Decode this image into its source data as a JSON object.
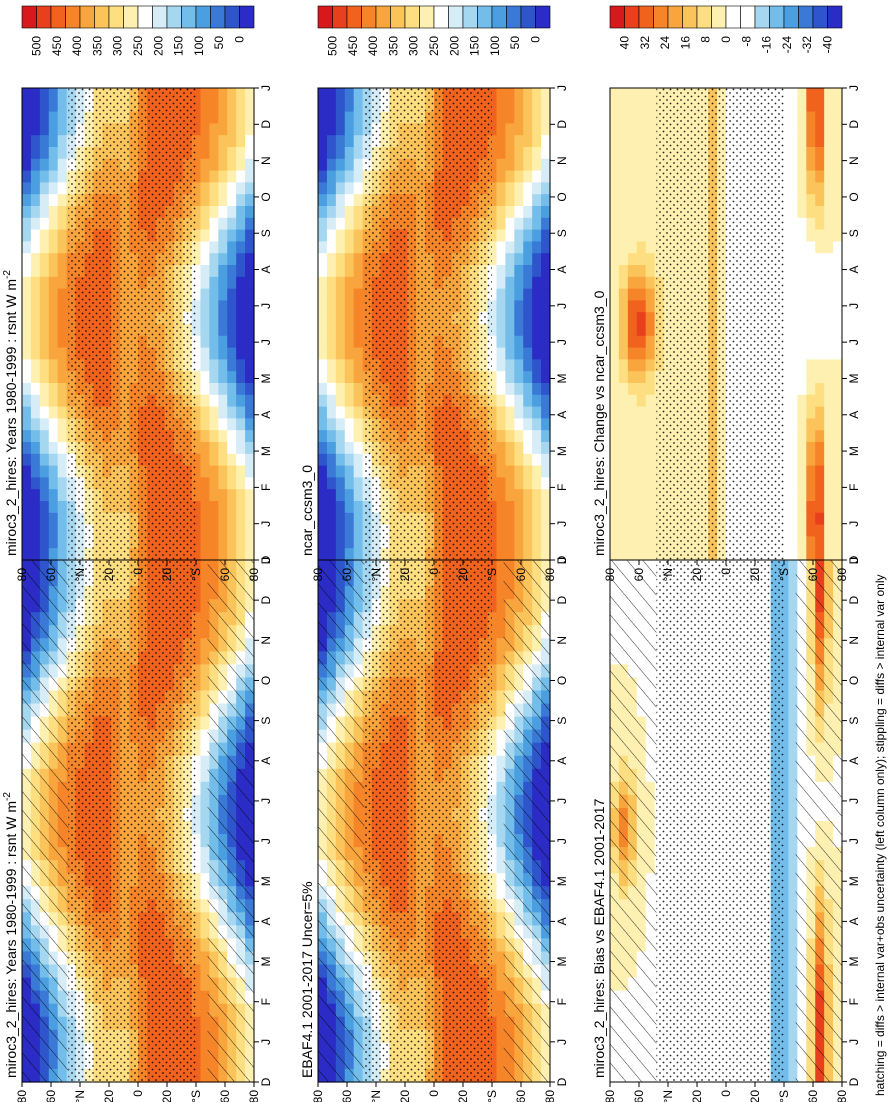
{
  "footer": "hatching = diffs > internal var+obs uncertainty (left column only); stippling = diffs > internal var only",
  "axis_labels": {
    "months": [
      "D",
      "J",
      "F",
      "M",
      "A",
      "M",
      "J",
      "J",
      "A",
      "S",
      "O",
      "N",
      "D",
      "J"
    ],
    "lat": [
      "80",
      "60",
      "°N",
      "20",
      "0",
      "20",
      "°S",
      "60",
      "80"
    ]
  },
  "colorbars": {
    "abs": {
      "labels": [
        "500",
        "450",
        "400",
        "350",
        "300",
        "250",
        "200",
        "150",
        "100",
        "50",
        "0"
      ],
      "colors": [
        "#d7191c",
        "#e8401c",
        "#f0621e",
        "#f6852a",
        "#f9a53d",
        "#fbc45a",
        "#fdde80",
        "#fef0b0",
        "#ffffff",
        "#d6ecf7",
        "#a6d7f0",
        "#73bdea",
        "#4b9fe0",
        "#3a7ad6",
        "#2e55cc",
        "#2b2bc6"
      ]
    },
    "diff": {
      "labels": [
        "40",
        "32",
        "24",
        "16",
        "8",
        "0",
        "-8",
        "-16",
        "-24",
        "-32",
        "-40"
      ],
      "colors": [
        "#d7191c",
        "#e8401c",
        "#f0621e",
        "#f6852a",
        "#f9a53d",
        "#fbc45a",
        "#fdde80",
        "#fef0b0",
        "#ffffff",
        "#ffffff",
        "#a6d7f0",
        "#73bdea",
        "#4b9fe0",
        "#3a7ad6",
        "#2e55cc",
        "#2b2bc6"
      ]
    }
  },
  "chart_data": [
    {
      "type": "heatmap",
      "title": "miroc3_2_hires: Years 1980-1999 : rsnt W m",
      "title_sup": "-2",
      "field": "abs",
      "colorbar": "abs",
      "hatch": "yes",
      "stipple": "yes"
    },
    {
      "type": "heatmap",
      "title": "miroc3_2_hires: Years 1980-1999 : rsnt W m",
      "title_sup": "-2",
      "field": "abs",
      "colorbar": "abs",
      "hatch": "no",
      "stipple": "yes"
    },
    {
      "type": "heatmap",
      "title": "EBAF4.1 2001-2017 Uncer=5%",
      "title_sup": "",
      "field": "abs",
      "colorbar": "abs",
      "hatch": "yes",
      "stipple": "yes"
    },
    {
      "type": "heatmap",
      "title": "ncar_ccsm3_0",
      "title_sup": "",
      "field": "abs",
      "colorbar": "abs",
      "hatch": "no",
      "stipple": "yes"
    },
    {
      "type": "heatmap",
      "title": "miroc3_2_hires: Bias vs EBAF4.1 2001-2017",
      "title_sup": "",
      "field": "bias",
      "colorbar": "diff",
      "hatch": "yes",
      "stipple": "yes"
    },
    {
      "type": "heatmap",
      "title": "miroc3_2_hires: Change vs ncar_ccsm3_0",
      "title_sup": "",
      "field": "change",
      "colorbar": "diff",
      "hatch": "no",
      "stipple": "yes"
    }
  ]
}
